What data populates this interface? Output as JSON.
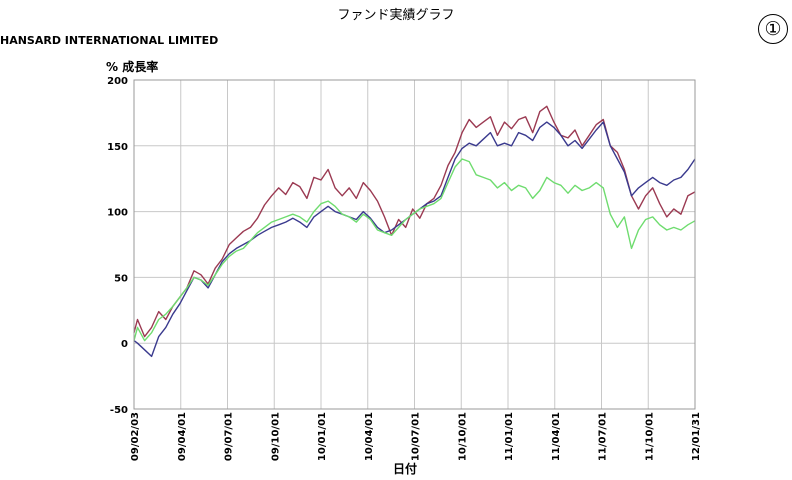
{
  "title": "ファンド実績グラフ",
  "fund_name": "HANSARD INTERNATIONAL LIMITED",
  "marker": "①",
  "chart_data": {
    "type": "line",
    "ylabel": "% 成長率",
    "xlabel": "日付",
    "ylim": [
      -50,
      200
    ],
    "y_ticks": [
      200,
      150,
      100,
      50,
      0,
      -50
    ],
    "x_ticks": [
      "09/02/03",
      "09/04/01",
      "09/07/01",
      "09/10/01",
      "10/01/01",
      "10/04/01",
      "10/07/01",
      "10/10/01",
      "11/01/01",
      "11/04/01",
      "11/07/01",
      "11/10/01",
      "12/01/31"
    ],
    "grid": true,
    "series": [
      {
        "color": "#9b3a52",
        "points": [
          [
            0,
            8
          ],
          [
            1,
            18
          ],
          [
            3,
            5
          ],
          [
            5,
            12
          ],
          [
            7,
            24
          ],
          [
            9,
            18
          ],
          [
            11,
            28
          ],
          [
            13,
            35
          ],
          [
            15,
            42
          ],
          [
            17,
            55
          ],
          [
            19,
            52
          ],
          [
            21,
            45
          ],
          [
            23,
            57
          ],
          [
            25,
            64
          ],
          [
            27,
            75
          ],
          [
            29,
            80
          ],
          [
            31,
            85
          ],
          [
            33,
            88
          ],
          [
            35,
            95
          ],
          [
            37,
            105
          ],
          [
            39,
            112
          ],
          [
            41,
            118
          ],
          [
            43,
            113
          ],
          [
            45,
            122
          ],
          [
            47,
            119
          ],
          [
            49,
            110
          ],
          [
            51,
            126
          ],
          [
            53,
            124
          ],
          [
            55,
            132
          ],
          [
            57,
            118
          ],
          [
            59,
            112
          ],
          [
            61,
            118
          ],
          [
            63,
            110
          ],
          [
            65,
            122
          ],
          [
            67,
            116
          ],
          [
            69,
            108
          ],
          [
            71,
            96
          ],
          [
            73,
            82
          ],
          [
            75,
            94
          ],
          [
            77,
            88
          ],
          [
            79,
            102
          ],
          [
            81,
            95
          ],
          [
            83,
            106
          ],
          [
            85,
            110
          ],
          [
            87,
            120
          ],
          [
            89,
            135
          ],
          [
            91,
            145
          ],
          [
            93,
            160
          ],
          [
            95,
            170
          ],
          [
            97,
            164
          ],
          [
            99,
            168
          ],
          [
            101,
            172
          ],
          [
            103,
            158
          ],
          [
            105,
            168
          ],
          [
            107,
            163
          ],
          [
            109,
            170
          ],
          [
            111,
            172
          ],
          [
            113,
            160
          ],
          [
            115,
            176
          ],
          [
            117,
            180
          ],
          [
            119,
            168
          ],
          [
            121,
            158
          ],
          [
            123,
            156
          ],
          [
            125,
            162
          ],
          [
            127,
            150
          ],
          [
            129,
            158
          ],
          [
            131,
            166
          ],
          [
            133,
            170
          ],
          [
            135,
            150
          ],
          [
            137,
            145
          ],
          [
            139,
            132
          ],
          [
            141,
            112
          ],
          [
            143,
            102
          ],
          [
            145,
            112
          ],
          [
            147,
            118
          ],
          [
            149,
            106
          ],
          [
            151,
            96
          ],
          [
            153,
            102
          ],
          [
            155,
            98
          ],
          [
            157,
            112
          ],
          [
            159,
            115
          ]
        ]
      },
      {
        "color": "#3a3a8e",
        "points": [
          [
            0,
            2
          ],
          [
            1,
            0
          ],
          [
            3,
            -5
          ],
          [
            5,
            -10
          ],
          [
            7,
            5
          ],
          [
            9,
            12
          ],
          [
            11,
            22
          ],
          [
            13,
            30
          ],
          [
            15,
            40
          ],
          [
            17,
            50
          ],
          [
            19,
            48
          ],
          [
            21,
            42
          ],
          [
            23,
            52
          ],
          [
            25,
            62
          ],
          [
            27,
            68
          ],
          [
            29,
            72
          ],
          [
            31,
            75
          ],
          [
            33,
            78
          ],
          [
            35,
            82
          ],
          [
            37,
            85
          ],
          [
            39,
            88
          ],
          [
            41,
            90
          ],
          [
            43,
            92
          ],
          [
            45,
            95
          ],
          [
            47,
            92
          ],
          [
            49,
            88
          ],
          [
            51,
            96
          ],
          [
            53,
            100
          ],
          [
            55,
            104
          ],
          [
            57,
            100
          ],
          [
            59,
            98
          ],
          [
            61,
            96
          ],
          [
            63,
            94
          ],
          [
            65,
            100
          ],
          [
            67,
            95
          ],
          [
            69,
            88
          ],
          [
            71,
            84
          ],
          [
            73,
            86
          ],
          [
            75,
            90
          ],
          [
            77,
            94
          ],
          [
            79,
            98
          ],
          [
            81,
            102
          ],
          [
            83,
            106
          ],
          [
            85,
            108
          ],
          [
            87,
            112
          ],
          [
            89,
            126
          ],
          [
            91,
            140
          ],
          [
            93,
            148
          ],
          [
            95,
            152
          ],
          [
            97,
            150
          ],
          [
            99,
            155
          ],
          [
            101,
            160
          ],
          [
            103,
            150
          ],
          [
            105,
            152
          ],
          [
            107,
            150
          ],
          [
            109,
            160
          ],
          [
            111,
            158
          ],
          [
            113,
            154
          ],
          [
            115,
            164
          ],
          [
            117,
            168
          ],
          [
            119,
            164
          ],
          [
            121,
            158
          ],
          [
            123,
            150
          ],
          [
            125,
            154
          ],
          [
            127,
            148
          ],
          [
            129,
            155
          ],
          [
            131,
            162
          ],
          [
            133,
            168
          ],
          [
            135,
            150
          ],
          [
            137,
            140
          ],
          [
            139,
            130
          ],
          [
            141,
            112
          ],
          [
            143,
            118
          ],
          [
            145,
            122
          ],
          [
            147,
            126
          ],
          [
            149,
            122
          ],
          [
            151,
            120
          ],
          [
            153,
            124
          ],
          [
            155,
            126
          ],
          [
            157,
            132
          ],
          [
            159,
            140
          ]
        ]
      },
      {
        "color": "#6fdc6f",
        "points": [
          [
            0,
            2
          ],
          [
            1,
            12
          ],
          [
            3,
            2
          ],
          [
            5,
            8
          ],
          [
            7,
            18
          ],
          [
            9,
            22
          ],
          [
            11,
            28
          ],
          [
            13,
            35
          ],
          [
            15,
            42
          ],
          [
            17,
            50
          ],
          [
            19,
            48
          ],
          [
            21,
            44
          ],
          [
            23,
            52
          ],
          [
            25,
            60
          ],
          [
            27,
            66
          ],
          [
            29,
            70
          ],
          [
            31,
            72
          ],
          [
            33,
            78
          ],
          [
            35,
            84
          ],
          [
            37,
            88
          ],
          [
            39,
            92
          ],
          [
            41,
            94
          ],
          [
            43,
            96
          ],
          [
            45,
            98
          ],
          [
            47,
            96
          ],
          [
            49,
            92
          ],
          [
            51,
            100
          ],
          [
            53,
            106
          ],
          [
            55,
            108
          ],
          [
            57,
            104
          ],
          [
            59,
            98
          ],
          [
            61,
            96
          ],
          [
            63,
            92
          ],
          [
            65,
            98
          ],
          [
            67,
            94
          ],
          [
            69,
            86
          ],
          [
            71,
            84
          ],
          [
            73,
            82
          ],
          [
            75,
            88
          ],
          [
            77,
            94
          ],
          [
            79,
            98
          ],
          [
            81,
            102
          ],
          [
            83,
            104
          ],
          [
            85,
            106
          ],
          [
            87,
            110
          ],
          [
            89,
            122
          ],
          [
            91,
            134
          ],
          [
            93,
            140
          ],
          [
            95,
            138
          ],
          [
            97,
            128
          ],
          [
            99,
            126
          ],
          [
            101,
            124
          ],
          [
            103,
            118
          ],
          [
            105,
            122
          ],
          [
            107,
            116
          ],
          [
            109,
            120
          ],
          [
            111,
            118
          ],
          [
            113,
            110
          ],
          [
            115,
            116
          ],
          [
            117,
            126
          ],
          [
            119,
            122
          ],
          [
            121,
            120
          ],
          [
            123,
            114
          ],
          [
            125,
            120
          ],
          [
            127,
            116
          ],
          [
            129,
            118
          ],
          [
            131,
            122
          ],
          [
            133,
            118
          ],
          [
            135,
            98
          ],
          [
            137,
            88
          ],
          [
            139,
            96
          ],
          [
            141,
            72
          ],
          [
            143,
            86
          ],
          [
            145,
            94
          ],
          [
            147,
            96
          ],
          [
            149,
            90
          ],
          [
            151,
            86
          ],
          [
            153,
            88
          ],
          [
            155,
            86
          ],
          [
            157,
            90
          ],
          [
            159,
            93
          ]
        ]
      }
    ]
  }
}
